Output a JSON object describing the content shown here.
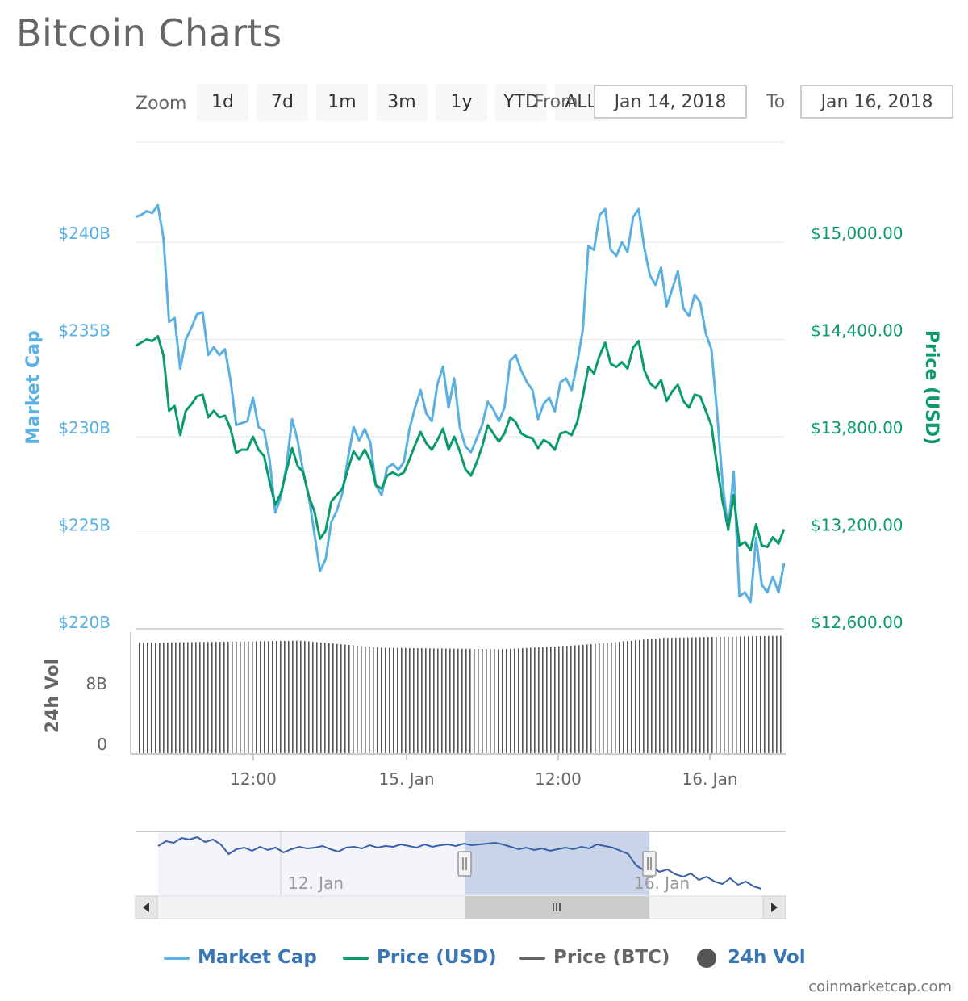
{
  "title": "Bitcoin Charts",
  "toolbar": {
    "zoom_label": "Zoom",
    "zoom_buttons": [
      "1d",
      "7d",
      "1m",
      "3m",
      "1y",
      "YTD",
      "ALL"
    ],
    "from_label": "From",
    "from_value": "Jan 14, 2018",
    "to_label": "To",
    "to_value": "Jan 16, 2018"
  },
  "colors": {
    "market_cap": "#5bb0e2",
    "price_usd": "#0a9a6e",
    "price_btc": "#666666",
    "volume": "#555555",
    "legend_text": "#3a76b4",
    "navigator_line": "#3a5fa8",
    "navigator_mask": "#c9d4ea"
  },
  "chart_data": {
    "type": "line",
    "title": "Bitcoin Charts",
    "x_ticks": [
      "12:00",
      "15. Jan",
      "12:00",
      "16. Jan"
    ],
    "left_axis": {
      "label": "Market Cap",
      "ticks": [
        "$240B",
        "$235B",
        "$230B",
        "$225B",
        "$220B"
      ],
      "ylim": [
        220,
        240
      ]
    },
    "right_axis": {
      "label": "Price (USD)",
      "ticks": [
        "$15,000.00",
        "$14,400.00",
        "$13,800.00",
        "$13,200.00",
        "$12,600.00"
      ],
      "ylim": [
        12600,
        15000
      ]
    },
    "volume_axis": {
      "label": "24h Vol",
      "ticks": [
        "8B",
        "0"
      ]
    },
    "series": [
      {
        "name": "Market Cap",
        "unit": "billion USD",
        "points": [
          [
            0,
            241.3
          ],
          [
            0.5,
            241.4
          ],
          [
            1,
            241.6
          ],
          [
            1.5,
            241.5
          ],
          [
            2,
            241.9
          ],
          [
            2.5,
            240.2
          ],
          [
            3,
            235.9
          ],
          [
            3.5,
            236.1
          ],
          [
            4,
            233.5
          ],
          [
            4.5,
            235.0
          ],
          [
            5,
            235.6
          ],
          [
            5.5,
            236.3
          ],
          [
            6,
            236.4
          ],
          [
            6.5,
            234.2
          ],
          [
            7,
            234.6
          ],
          [
            7.5,
            234.2
          ],
          [
            8,
            234.5
          ],
          [
            8.5,
            232.9
          ],
          [
            9,
            230.6
          ],
          [
            9.5,
            230.7
          ],
          [
            10,
            230.8
          ],
          [
            10.5,
            232.0
          ],
          [
            11,
            230.5
          ],
          [
            11.5,
            230.3
          ],
          [
            12,
            228.8
          ],
          [
            12.5,
            226.1
          ],
          [
            13,
            226.9
          ],
          [
            13.5,
            228.5
          ],
          [
            14,
            230.9
          ],
          [
            14.5,
            229.8
          ],
          [
            15,
            228.2
          ],
          [
            15.5,
            226.9
          ],
          [
            16,
            225.0
          ],
          [
            16.5,
            223.1
          ],
          [
            17,
            223.7
          ],
          [
            17.5,
            225.6
          ],
          [
            18,
            226.2
          ],
          [
            18.5,
            227.1
          ],
          [
            19,
            228.9
          ],
          [
            19.5,
            230.5
          ],
          [
            20,
            229.8
          ],
          [
            20.5,
            230.4
          ],
          [
            21,
            229.7
          ],
          [
            21.5,
            227.5
          ],
          [
            22,
            227.0
          ],
          [
            22.5,
            228.4
          ],
          [
            23,
            228.6
          ],
          [
            23.5,
            228.3
          ],
          [
            24,
            228.7
          ],
          [
            24.5,
            230.4
          ],
          [
            25,
            231.5
          ],
          [
            25.5,
            232.4
          ],
          [
            26,
            231.2
          ],
          [
            26.5,
            230.8
          ],
          [
            27,
            232.7
          ],
          [
            27.5,
            233.6
          ],
          [
            28,
            231.5
          ],
          [
            28.5,
            233.0
          ],
          [
            29,
            230.5
          ],
          [
            29.5,
            229.5
          ],
          [
            30,
            229.2
          ],
          [
            30.5,
            229.9
          ],
          [
            31,
            230.6
          ],
          [
            31.5,
            231.8
          ],
          [
            32,
            231.4
          ],
          [
            32.5,
            230.8
          ],
          [
            33,
            231.5
          ],
          [
            33.5,
            233.9
          ],
          [
            34,
            234.2
          ],
          [
            34.5,
            233.4
          ],
          [
            35,
            232.8
          ],
          [
            35.5,
            232.4
          ],
          [
            36,
            230.9
          ],
          [
            36.5,
            231.7
          ],
          [
            37,
            232.0
          ],
          [
            37.5,
            231.3
          ],
          [
            38,
            232.8
          ],
          [
            38.5,
            233.0
          ],
          [
            39,
            232.4
          ],
          [
            39.5,
            233.8
          ],
          [
            40,
            235.5
          ],
          [
            40.5,
            239.8
          ],
          [
            41,
            239.6
          ],
          [
            41.5,
            241.4
          ],
          [
            42,
            241.7
          ],
          [
            42.5,
            239.6
          ],
          [
            43,
            239.3
          ],
          [
            43.5,
            240.0
          ],
          [
            44,
            239.5
          ],
          [
            44.5,
            241.3
          ],
          [
            45,
            241.7
          ],
          [
            45.5,
            239.7
          ],
          [
            46,
            238.3
          ],
          [
            46.5,
            237.8
          ],
          [
            47,
            238.7
          ],
          [
            47.5,
            236.7
          ],
          [
            48,
            237.6
          ],
          [
            48.5,
            238.5
          ],
          [
            49,
            236.6
          ],
          [
            49.5,
            236.2
          ],
          [
            50,
            237.3
          ],
          [
            50.5,
            236.9
          ],
          [
            51,
            235.3
          ],
          [
            51.5,
            234.5
          ],
          [
            52,
            231.3
          ],
          [
            52.5,
            227.6
          ],
          [
            53,
            225.2
          ],
          [
            53.5,
            228.2
          ],
          [
            54,
            221.8
          ],
          [
            54.5,
            222.0
          ],
          [
            55,
            221.5
          ],
          [
            55.5,
            224.8
          ],
          [
            56,
            222.4
          ],
          [
            56.5,
            222.0
          ],
          [
            57,
            222.8
          ],
          [
            57.5,
            222.0
          ],
          [
            58,
            223.5
          ]
        ]
      },
      {
        "name": "Price (USD)",
        "unit": "USD",
        "points": [
          [
            0,
            14360
          ],
          [
            0.5,
            14380
          ],
          [
            1,
            14400
          ],
          [
            1.5,
            14390
          ],
          [
            2,
            14420
          ],
          [
            2.5,
            14300
          ],
          [
            3,
            13960
          ],
          [
            3.5,
            13990
          ],
          [
            4,
            13810
          ],
          [
            4.5,
            13960
          ],
          [
            5,
            14000
          ],
          [
            5.5,
            14050
          ],
          [
            6,
            14060
          ],
          [
            6.5,
            13920
          ],
          [
            7,
            13960
          ],
          [
            7.5,
            13920
          ],
          [
            8,
            13930
          ],
          [
            8.5,
            13850
          ],
          [
            9,
            13700
          ],
          [
            9.5,
            13720
          ],
          [
            10,
            13720
          ],
          [
            10.5,
            13800
          ],
          [
            11,
            13720
          ],
          [
            11.5,
            13680
          ],
          [
            12,
            13520
          ],
          [
            12.5,
            13380
          ],
          [
            13,
            13450
          ],
          [
            13.5,
            13590
          ],
          [
            14,
            13730
          ],
          [
            14.5,
            13620
          ],
          [
            15,
            13580
          ],
          [
            15.5,
            13430
          ],
          [
            16,
            13340
          ],
          [
            16.5,
            13170
          ],
          [
            17,
            13220
          ],
          [
            17.5,
            13400
          ],
          [
            18,
            13440
          ],
          [
            18.5,
            13480
          ],
          [
            19,
            13600
          ],
          [
            19.5,
            13710
          ],
          [
            20,
            13660
          ],
          [
            20.5,
            13720
          ],
          [
            21,
            13650
          ],
          [
            21.5,
            13500
          ],
          [
            22,
            13480
          ],
          [
            22.5,
            13560
          ],
          [
            23,
            13580
          ],
          [
            23.5,
            13560
          ],
          [
            24,
            13580
          ],
          [
            24.5,
            13660
          ],
          [
            25,
            13750
          ],
          [
            25.5,
            13830
          ],
          [
            26,
            13760
          ],
          [
            26.5,
            13720
          ],
          [
            27,
            13780
          ],
          [
            27.5,
            13850
          ],
          [
            28,
            13720
          ],
          [
            28.5,
            13800
          ],
          [
            29,
            13710
          ],
          [
            29.5,
            13600
          ],
          [
            30,
            13560
          ],
          [
            30.5,
            13640
          ],
          [
            31,
            13740
          ],
          [
            31.5,
            13870
          ],
          [
            32,
            13820
          ],
          [
            32.5,
            13770
          ],
          [
            33,
            13820
          ],
          [
            33.5,
            13920
          ],
          [
            34,
            13890
          ],
          [
            34.5,
            13820
          ],
          [
            35,
            13800
          ],
          [
            35.5,
            13790
          ],
          [
            36,
            13730
          ],
          [
            36.5,
            13780
          ],
          [
            37,
            13760
          ],
          [
            37.5,
            13720
          ],
          [
            38,
            13820
          ],
          [
            38.5,
            13830
          ],
          [
            39,
            13810
          ],
          [
            39.5,
            13890
          ],
          [
            40,
            14050
          ],
          [
            40.5,
            14230
          ],
          [
            41,
            14190
          ],
          [
            41.5,
            14300
          ],
          [
            42,
            14380
          ],
          [
            42.5,
            14250
          ],
          [
            43,
            14230
          ],
          [
            43.5,
            14260
          ],
          [
            44,
            14220
          ],
          [
            44.5,
            14350
          ],
          [
            45,
            14390
          ],
          [
            45.5,
            14210
          ],
          [
            46,
            14130
          ],
          [
            46.5,
            14100
          ],
          [
            47,
            14150
          ],
          [
            47.5,
            14020
          ],
          [
            48,
            14080
          ],
          [
            48.5,
            14120
          ],
          [
            49,
            14020
          ],
          [
            49.5,
            13980
          ],
          [
            50,
            14060
          ],
          [
            50.5,
            14050
          ],
          [
            51,
            13960
          ],
          [
            51.5,
            13870
          ],
          [
            52,
            13620
          ],
          [
            52.5,
            13400
          ],
          [
            53,
            13230
          ],
          [
            53.5,
            13440
          ],
          [
            54,
            13130
          ],
          [
            54.5,
            13150
          ],
          [
            55,
            13100
          ],
          [
            55.5,
            13260
          ],
          [
            56,
            13130
          ],
          [
            56.5,
            13120
          ],
          [
            57,
            13180
          ],
          [
            57.5,
            13140
          ],
          [
            58,
            13230
          ]
        ]
      }
    ],
    "volume": {
      "name": "24h Vol",
      "unit": "billion USD",
      "bars": 160,
      "points": [
        [
          0,
          15.5
        ],
        [
          40,
          15.8
        ],
        [
          60,
          14.8
        ],
        [
          90,
          14.6
        ],
        [
          110,
          15.2
        ],
        [
          130,
          16.2
        ],
        [
          160,
          16.5
        ]
      ]
    },
    "navigator": {
      "x_ticks": [
        "12. Jan",
        "16. Jan"
      ],
      "selection": [
        "Jan 14, 2018",
        "Jan 16, 2018"
      ]
    },
    "legend_position": "bottom",
    "grid": true
  },
  "legend": [
    {
      "label": "Market Cap"
    },
    {
      "label": "Price (USD)"
    },
    {
      "label": "Price (BTC)"
    },
    {
      "label": "24h Vol"
    }
  ],
  "credit": "coinmarketcap.com"
}
